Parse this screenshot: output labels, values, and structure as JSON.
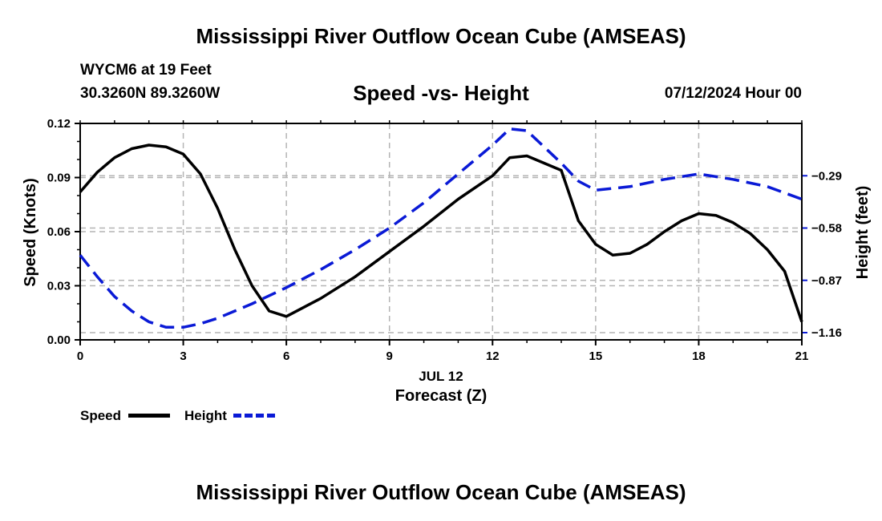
{
  "header": {
    "title": "Mississippi River Outflow Ocean Cube (AMSEAS)",
    "station": "WYCM6 at 19 Feet",
    "coords": "30.3260N  89.3260W",
    "subtitle": "Speed -vs- Height",
    "datetime": "07/12/2024 Hour 00"
  },
  "footer": {
    "title": "Mississippi River Outflow Ocean Cube (AMSEAS)"
  },
  "legend": {
    "speed_label": "Speed",
    "height_label": "Height"
  },
  "colors": {
    "speed": "#000000",
    "height": "#0a1ad6",
    "grid": "#b4b4b4"
  },
  "chart_data": {
    "type": "line",
    "xlabel": "Forecast (Z)",
    "x_date_label": "JUL 12",
    "ylabel": "Speed (Knots)",
    "y2label": "Height (feet)",
    "xlim": [
      0,
      21
    ],
    "ylim": [
      0,
      0.12
    ],
    "y2lim": [
      -1.2,
      -0.0
    ],
    "x_ticks": [
      0,
      3,
      6,
      9,
      12,
      15,
      18,
      21
    ],
    "x_tick_labels": [
      "0",
      "3",
      "6",
      "9",
      "12",
      "15",
      "18",
      "21"
    ],
    "y_ticks": [
      0,
      0.03,
      0.06,
      0.09,
      0.12
    ],
    "y_tick_labels": [
      "0.00",
      "0.03",
      "0.06",
      "0.09",
      "0.12"
    ],
    "y2_ticks": [
      -1.16,
      -0.87,
      -0.58,
      -0.29
    ],
    "y2_tick_labels": [
      "−1.16",
      "−0.87",
      "−0.58",
      "−0.29"
    ],
    "grid": true,
    "series": [
      {
        "name": "Speed",
        "axis": "left",
        "style": "solid",
        "x": [
          0,
          0.5,
          1,
          1.5,
          2,
          2.5,
          3,
          3.5,
          4,
          4.5,
          5,
          5.5,
          6,
          7,
          8,
          9,
          10,
          11,
          12,
          12.5,
          13,
          14,
          14.5,
          15,
          15.5,
          16,
          16.5,
          17,
          17.5,
          18,
          18.5,
          19,
          19.5,
          20,
          20.5,
          21
        ],
        "values": [
          0.082,
          0.093,
          0.101,
          0.106,
          0.108,
          0.107,
          0.103,
          0.092,
          0.073,
          0.05,
          0.03,
          0.016,
          0.013,
          0.023,
          0.035,
          0.049,
          0.063,
          0.078,
          0.091,
          0.101,
          0.102,
          0.094,
          0.066,
          0.053,
          0.047,
          0.048,
          0.053,
          0.06,
          0.066,
          0.07,
          0.069,
          0.065,
          0.059,
          0.05,
          0.038,
          0.01
        ]
      },
      {
        "name": "Height",
        "axis": "right",
        "style": "dashed",
        "x": [
          0,
          0.5,
          1,
          1.5,
          2,
          2.5,
          3,
          3.5,
          4,
          5,
          6,
          7,
          8,
          9,
          10,
          11,
          12,
          12.5,
          13,
          13.5,
          14,
          14.5,
          15,
          16,
          17,
          18,
          19,
          20,
          21
        ],
        "values": [
          -0.73,
          -0.85,
          -0.96,
          -1.04,
          -1.1,
          -1.13,
          -1.13,
          -1.11,
          -1.08,
          -1.0,
          -0.91,
          -0.81,
          -0.7,
          -0.58,
          -0.44,
          -0.28,
          -0.12,
          -0.03,
          -0.04,
          -0.13,
          -0.22,
          -0.32,
          -0.37,
          -0.35,
          -0.31,
          -0.28,
          -0.31,
          -0.35,
          -0.42
        ]
      }
    ]
  }
}
